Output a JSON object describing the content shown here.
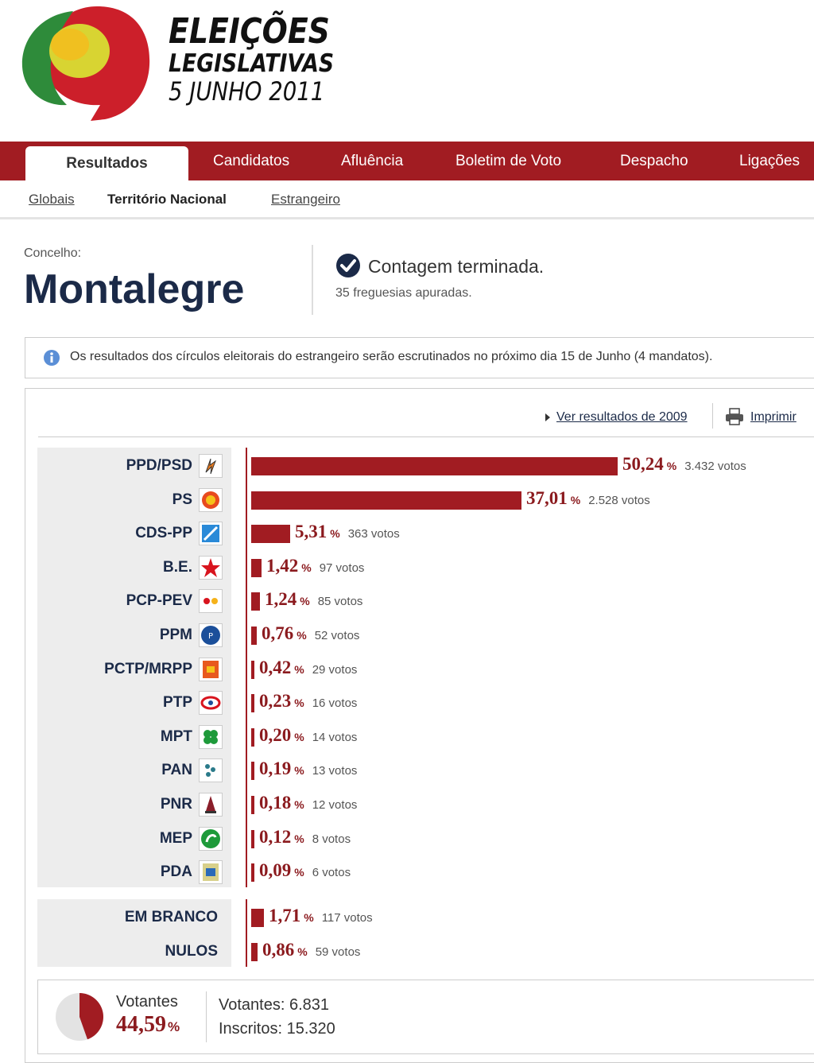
{
  "brand": {
    "line1": "ELEIÇÕES",
    "line2": "LEGISLATIVAS",
    "line3": "5 JUNHO 2011"
  },
  "nav": {
    "tabs": [
      "Resultados",
      "Candidatos",
      "Afluência",
      "Boletim de Voto",
      "Despacho",
      "Ligações"
    ],
    "active": "Resultados"
  },
  "subnav": [
    "Globais",
    "Território Nacional",
    "Estrangeiro"
  ],
  "concelho": {
    "label": "Concelho:",
    "name": "Montalegre",
    "status": "Contagem terminada.",
    "substatus": "35 freguesias apuradas."
  },
  "notice": "Os resultados dos círculos eleitorais do estrangeiro serão escrutinados no próximo dia 15 de Junho (4 mandatos).",
  "toolbar": {
    "ver_2009": "Ver resultados de 2009",
    "print": "Imprimir"
  },
  "colors": {
    "accent": "#a11c22",
    "navy": "#1b2a48"
  },
  "chart_data": {
    "type": "bar",
    "orientation": "horizontal",
    "categories": [
      "PPD/PSD",
      "PS",
      "CDS-PP",
      "B.E.",
      "PCP-PEV",
      "PPM",
      "PCTP/MRPP",
      "PTP",
      "MPT",
      "PAN",
      "PNR",
      "MEP",
      "PDA"
    ],
    "percentages": [
      "50,24",
      "37,01",
      "5,31",
      "1,42",
      "1,24",
      "0,76",
      "0,42",
      "0,23",
      "0,20",
      "0,19",
      "0,18",
      "0,12",
      "0,09"
    ],
    "values": [
      50.24,
      37.01,
      5.31,
      1.42,
      1.24,
      0.76,
      0.42,
      0.23,
      0.2,
      0.19,
      0.18,
      0.12,
      0.09
    ],
    "votes": [
      "3.432 votos",
      "2.528 votos",
      "363 votos",
      "97 votos",
      "85 votos",
      "52 votos",
      "29 votos",
      "16 votos",
      "14 votos",
      "13 votos",
      "12 votos",
      "8 votos",
      "6 votos"
    ],
    "extra_categories": [
      "EM BRANCO",
      "NULOS"
    ],
    "extra_percentages": [
      "1,71",
      "0,86"
    ],
    "extra_values": [
      1.71,
      0.86
    ],
    "extra_votes": [
      "117 votos",
      "59 votos"
    ],
    "unit": "%"
  },
  "summary": {
    "label": "Votantes",
    "pct": "44,59",
    "pct_value": 44.59,
    "unit": "%",
    "votantes": "Votantes: 6.831",
    "inscritos": "Inscritos: 15.320"
  }
}
